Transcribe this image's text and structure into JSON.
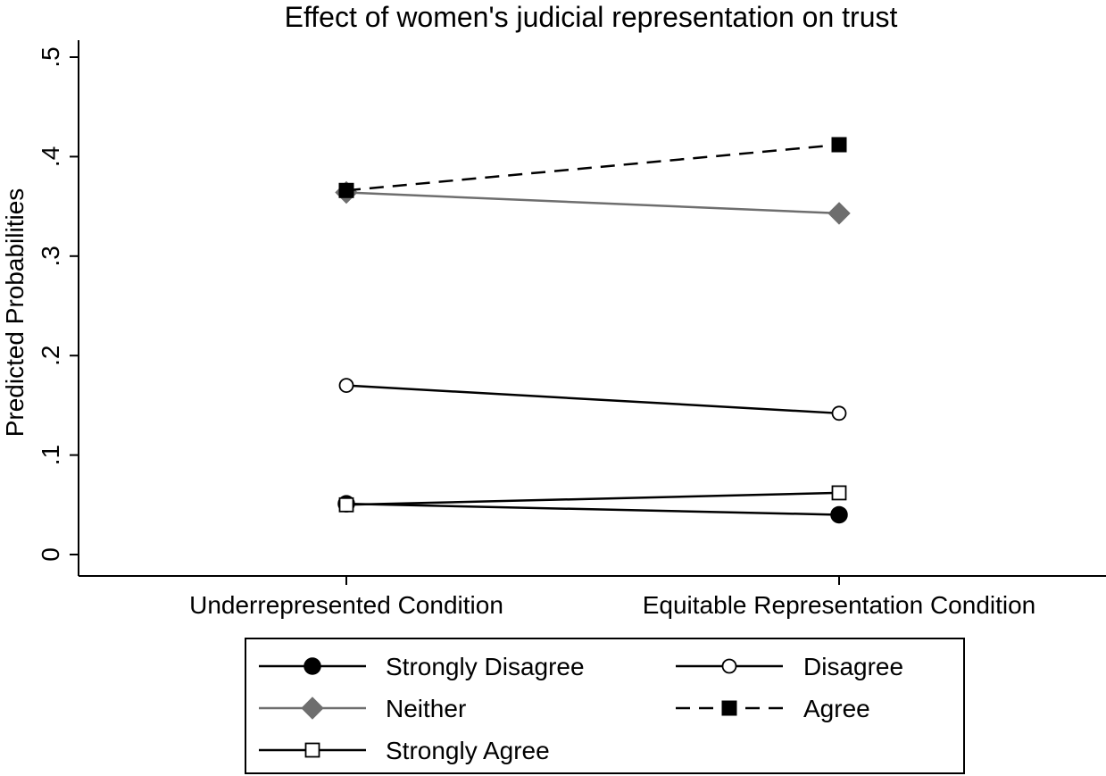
{
  "chart_data": {
    "type": "line",
    "title": "Effect of women's judicial representation on trust",
    "xlabel": "",
    "ylabel": "Predicted Probabilities",
    "categories": [
      "Underrepresented Condition",
      "Equitable Representation Condition"
    ],
    "ylim": [
      0,
      0.5
    ],
    "yticks": [
      {
        "value": 0,
        "label": "0"
      },
      {
        "value": 0.1,
        "label": ".1"
      },
      {
        "value": 0.2,
        "label": ".2"
      },
      {
        "value": 0.3,
        "label": ".3"
      },
      {
        "value": 0.4,
        "label": ".4"
      },
      {
        "value": 0.5,
        "label": ".5"
      }
    ],
    "grid": false,
    "legend_position": "bottom",
    "series": [
      {
        "name": "Strongly Disagree",
        "values": [
          0.051,
          0.04
        ],
        "marker": "circle-filled",
        "line": "solid",
        "color": "#000000"
      },
      {
        "name": "Disagree",
        "values": [
          0.17,
          0.142
        ],
        "marker": "circle-open",
        "line": "solid",
        "color": "#000000"
      },
      {
        "name": "Neither",
        "values": [
          0.364,
          0.343
        ],
        "marker": "diamond-filled",
        "line": "solid",
        "color": "#6e6e6e"
      },
      {
        "name": "Agree",
        "values": [
          0.366,
          0.412
        ],
        "marker": "square-filled",
        "line": "dashed",
        "color": "#000000"
      },
      {
        "name": "Strongly Agree",
        "values": [
          0.05,
          0.062
        ],
        "marker": "square-open",
        "line": "solid",
        "color": "#000000"
      }
    ],
    "legend_order": [
      "Strongly Disagree",
      "Disagree",
      "Neither",
      "Agree",
      "Strongly Agree"
    ]
  }
}
